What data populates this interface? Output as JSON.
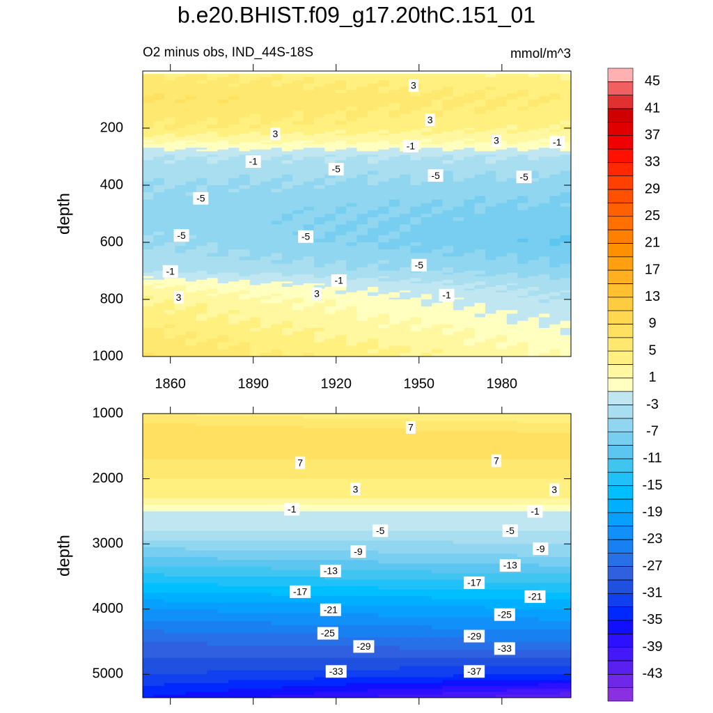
{
  "chart_data": [
    {
      "type": "contour",
      "title": "b.e20.BHIST.f09_g17.20thC.151_01",
      "subtitle": "O2 minus obs, IND_44S-18S",
      "units": "mmol/m^3",
      "ylabel": "depth",
      "xlim": [
        1850,
        2005
      ],
      "ylim": [
        0,
        1000
      ],
      "xticks": [
        1860,
        1890,
        1920,
        1950,
        1980
      ],
      "yticks": [
        200,
        400,
        600,
        800,
        1000
      ],
      "xtick_labels": true,
      "field": {
        "x": [
          1850,
          2005
        ],
        "depth": [
          10,
          100,
          200,
          250,
          300,
          400,
          500,
          600,
          700,
          750,
          800,
          900,
          1000
        ],
        "values": [
          [
            5,
            7,
            5,
            1,
            -3,
            -5,
            -6,
            -5,
            -3,
            1,
            3,
            5,
            7
          ],
          [
            3,
            5,
            3,
            1,
            -3,
            -6,
            -8,
            -9,
            -6,
            -4,
            -3,
            -1,
            1
          ]
        ]
      },
      "contour_labels": [
        {
          "value": 3,
          "x": 1948,
          "y": 51
        },
        {
          "value": 3,
          "x": 1954,
          "y": 171
        },
        {
          "value": 3,
          "x": 1898,
          "y": 220
        },
        {
          "value": 3,
          "x": 1978,
          "y": 244
        },
        {
          "value": -1,
          "x": 1947,
          "y": 263
        },
        {
          "value": -1,
          "x": 2000,
          "y": 249
        },
        {
          "value": -1,
          "x": 1890,
          "y": 317
        },
        {
          "value": -5,
          "x": 1920,
          "y": 344
        },
        {
          "value": -5,
          "x": 1956,
          "y": 366
        },
        {
          "value": -5,
          "x": 1988,
          "y": 371
        },
        {
          "value": -5,
          "x": 1871,
          "y": 446
        },
        {
          "value": -5,
          "x": 1864,
          "y": 576
        },
        {
          "value": -5,
          "x": 1909,
          "y": 580
        },
        {
          "value": -5,
          "x": 1950,
          "y": 680
        },
        {
          "value": -1,
          "x": 1860,
          "y": 702
        },
        {
          "value": -1,
          "x": 1921,
          "y": 734
        },
        {
          "value": -1,
          "x": 1960,
          "y": 785
        },
        {
          "value": 3,
          "x": 1863,
          "y": 793
        },
        {
          "value": 3,
          "x": 1913,
          "y": 780
        }
      ],
      "colorbar": {
        "levels": [
          -45,
          -43,
          -41,
          -39,
          -37,
          -35,
          -33,
          -31,
          -29,
          -27,
          -25,
          -23,
          -21,
          -19,
          -17,
          -15,
          -13,
          -11,
          -9,
          -7,
          -5,
          -3,
          -1,
          1,
          3,
          5,
          7,
          9,
          11,
          13,
          15,
          17,
          19,
          21,
          23,
          25,
          27,
          29,
          31,
          33,
          35,
          37,
          39,
          41,
          43,
          45
        ],
        "ticks": [
          -43,
          -39,
          -35,
          -31,
          -27,
          -23,
          -19,
          -15,
          -11,
          -7,
          -3,
          1,
          5,
          9,
          13,
          17,
          21,
          25,
          29,
          33,
          37,
          41,
          45
        ],
        "colors": [
          "#8a30e0",
          "#7028e8",
          "#5a20f0",
          "#4418f8",
          "#2c10ff",
          "#1010ff",
          "#0028ff",
          "#1040f0",
          "#2050e0",
          "#3060e0",
          "#2870e8",
          "#1880f0",
          "#1090f8",
          "#08a0ff",
          "#00b0ff",
          "#00bfff",
          "#20c0f8",
          "#40c4f0",
          "#5cc6f0",
          "#78cef0",
          "#90d6f0",
          "#a8def0",
          "#c0e6f2",
          "#ffffc0",
          "#fff8a0",
          "#fff080",
          "#ffe870",
          "#ffe060",
          "#ffd850",
          "#ffcc40",
          "#ffc030",
          "#ffb020",
          "#ffa010",
          "#ff9000",
          "#ff8000",
          "#ff7000",
          "#ff6000",
          "#ff5000",
          "#ff4000",
          "#ff2800",
          "#ff1000",
          "#f00000",
          "#e00000",
          "#d00000",
          "#e03030",
          "#f06060",
          "#ffb0b0"
        ]
      }
    },
    {
      "type": "contour",
      "ylabel": "depth",
      "xlim": [
        1850,
        2005
      ],
      "ylim": [
        1000,
        5360
      ],
      "xticks": [
        1860,
        1890,
        1920,
        1950,
        1980
      ],
      "yticks": [
        1000,
        2000,
        3000,
        4000,
        5000
      ],
      "xtick_labels": false,
      "field": {
        "x": [
          1850,
          2005
        ],
        "depth": [
          1000,
          1300,
          1700,
          2000,
          2300,
          2500,
          2800,
          3200,
          3600,
          4000,
          4500,
          5000,
          5360
        ],
        "values": [
          [
            5,
            9,
            7,
            5,
            3,
            -1,
            -3,
            -9,
            -15,
            -21,
            -27,
            -31,
            -35
          ],
          [
            3,
            7,
            7,
            5,
            3,
            -1,
            -3,
            -7,
            -13,
            -19,
            -25,
            -33,
            -43
          ]
        ]
      },
      "contour_labels": [
        {
          "value": 7,
          "x": 1947,
          "y": 1213
        },
        {
          "value": 7,
          "x": 1907,
          "y": 1755
        },
        {
          "value": 7,
          "x": 1978,
          "y": 1723
        },
        {
          "value": 3,
          "x": 1927,
          "y": 2160
        },
        {
          "value": 3,
          "x": 1999,
          "y": 2170
        },
        {
          "value": -1,
          "x": 1904,
          "y": 2468
        },
        {
          "value": -1,
          "x": 1992,
          "y": 2500
        },
        {
          "value": -5,
          "x": 1936,
          "y": 2798
        },
        {
          "value": -5,
          "x": 1983,
          "y": 2798
        },
        {
          "value": -9,
          "x": 1928,
          "y": 3117
        },
        {
          "value": -9,
          "x": 1994,
          "y": 3074
        },
        {
          "value": -13,
          "x": 1918,
          "y": 3415
        },
        {
          "value": -13,
          "x": 1983,
          "y": 3330
        },
        {
          "value": -17,
          "x": 1907,
          "y": 3734
        },
        {
          "value": -17,
          "x": 1970,
          "y": 3596
        },
        {
          "value": -21,
          "x": 1918,
          "y": 4011
        },
        {
          "value": -21,
          "x": 1992,
          "y": 3809
        },
        {
          "value": -25,
          "x": 1917,
          "y": 4372
        },
        {
          "value": -25,
          "x": 1981,
          "y": 4085
        },
        {
          "value": -29,
          "x": 1930,
          "y": 4574
        },
        {
          "value": -29,
          "x": 1970,
          "y": 4415
        },
        {
          "value": -33,
          "x": 1920,
          "y": 4957
        },
        {
          "value": -33,
          "x": 1981,
          "y": 4606
        },
        {
          "value": -37,
          "x": 1970,
          "y": 4957
        }
      ]
    }
  ]
}
